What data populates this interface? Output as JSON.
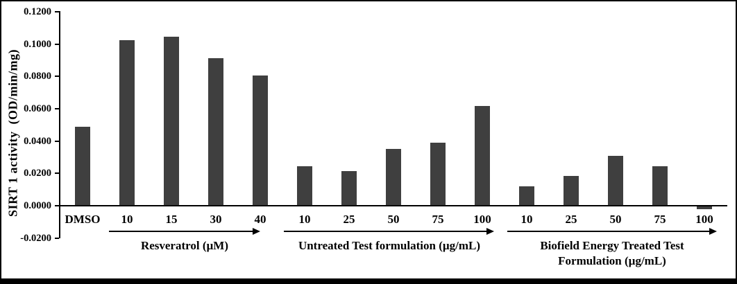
{
  "figure": {
    "background": "#ffffff",
    "border_color": "#000000"
  },
  "chart_data": {
    "type": "bar",
    "title": "",
    "ylabel": "SIRT 1 activity  (OD/min/mg)",
    "xlabel": "",
    "ylim": [
      -0.02,
      0.12
    ],
    "ytick_step": 0.02,
    "ytick_labels": [
      "0.1200",
      "0.1000",
      "0.0800",
      "0.0600",
      "0.0400",
      "0.0200",
      "0.0000",
      "-0.0200"
    ],
    "grid": false,
    "legend": false,
    "bar_color": "#3f3f3f",
    "axis_color": "#000000",
    "categories": [
      "DMSO",
      "10",
      "15",
      "30",
      "40",
      "10",
      "25",
      "50",
      "75",
      "100",
      "10",
      "25",
      "50",
      "75",
      "100"
    ],
    "values": [
      0.0485,
      0.102,
      0.104,
      0.091,
      0.08,
      0.024,
      0.021,
      0.0345,
      0.0385,
      0.0612,
      0.0115,
      0.018,
      0.0305,
      0.024,
      -0.0017
    ],
    "groups": [
      {
        "label": "Resveratrol (µM)",
        "label_lines": [
          "Resveratrol (µM)"
        ],
        "start_index": 1,
        "end_index": 4
      },
      {
        "label": "Untreated Test formulation (µg/mL)",
        "label_lines": [
          "Untreated Test formulation (µg/mL)"
        ],
        "start_index": 5,
        "end_index": 9
      },
      {
        "label": "Biofield Energy Treated Test Formulation (µg/mL)",
        "label_lines": [
          "Biofield Energy Treated Test",
          "Formulation (µg/mL)"
        ],
        "start_index": 10,
        "end_index": 14
      }
    ]
  }
}
